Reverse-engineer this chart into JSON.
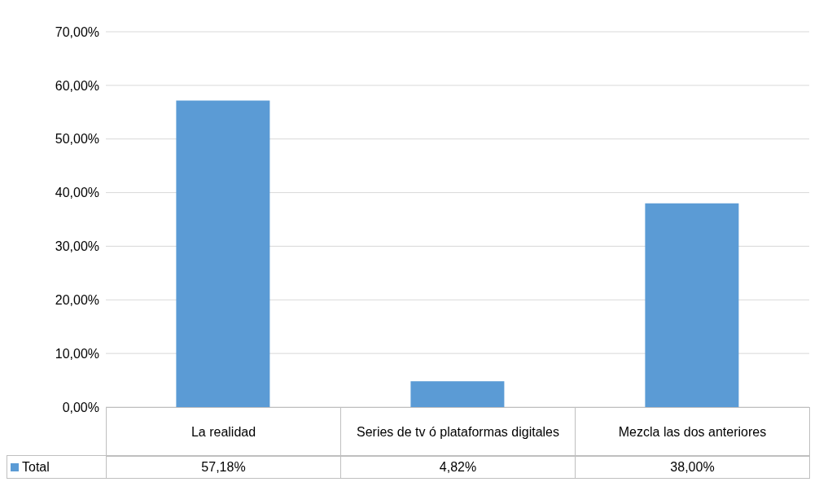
{
  "chart_data": {
    "type": "bar",
    "categories": [
      "La realidad",
      "Series de tv ó plataformas digitales",
      "Mezcla las dos anteriores"
    ],
    "series": [
      {
        "name": "Total",
        "color": "#5b9bd5",
        "values": [
          57.18,
          4.82,
          38.0
        ],
        "value_labels": [
          "57,18%",
          "4,82%",
          "38,00%"
        ]
      }
    ],
    "ylim": [
      0,
      70
    ],
    "yticks": [
      {
        "value": 0,
        "label": "0,00%"
      },
      {
        "value": 10,
        "label": "10,00%"
      },
      {
        "value": 20,
        "label": "20,00%"
      },
      {
        "value": 30,
        "label": "30,00%"
      },
      {
        "value": 40,
        "label": "40,00%"
      },
      {
        "value": 50,
        "label": "50,00%"
      },
      {
        "value": 60,
        "label": "60,00%"
      },
      {
        "value": 70,
        "label": "70,00%"
      }
    ],
    "grid": "y",
    "legend": "bottom left"
  }
}
